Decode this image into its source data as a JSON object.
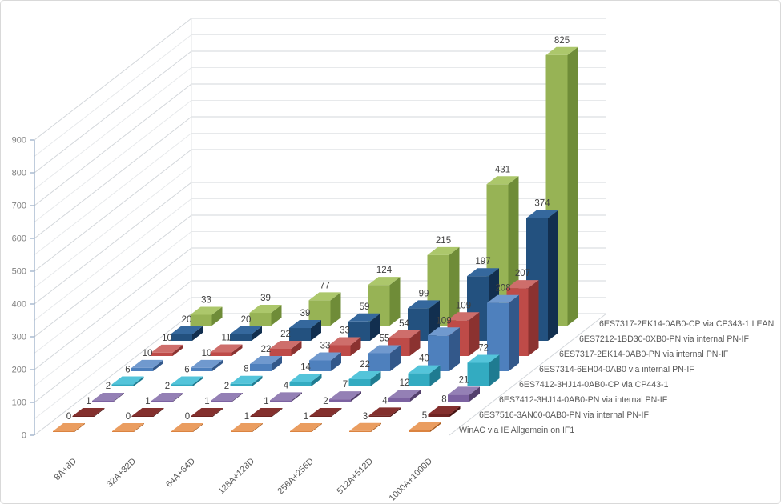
{
  "chart_data": {
    "type": "bar",
    "projection": "3d",
    "title": "",
    "categories": [
      "8A+8D",
      "32A+32D",
      "64A+64D",
      "128A+128D",
      "256A+256D",
      "512A+512D",
      "1000A+1000D"
    ],
    "series_depth_order": "first series is the back row, last series is the front row",
    "series": [
      {
        "name": "6ES7317-2EK14-0AB0-CP via CP343-1 LEAN",
        "color": "#97B355",
        "color_light": "#ACC76B",
        "color_dark": "#6F8C38",
        "values": [
          33,
          39,
          77,
          124,
          215,
          431,
          825
        ]
      },
      {
        "name": "6ES7212-1BD30-0XB0-PN via internal PN-IF",
        "color": "#23517F",
        "color_light": "#35689D",
        "color_dark": "#122F4F",
        "values": [
          20,
          20,
          39,
          59,
          99,
          197,
          374
        ]
      },
      {
        "name": "6ES7317-2EK14-0AB0-PN via internal PN-IF",
        "color": "#BE4B48",
        "color_light": "#CE6E6B",
        "color_dark": "#8B3230",
        "values": [
          10,
          11,
          22,
          33,
          54,
          109,
          207
        ]
      },
      {
        "name": "6ES7314-6EH04-0AB0 via internal PN-IF",
        "color": "#4E80BD",
        "color_light": "#7099CE",
        "color_dark": "#33588A",
        "values": [
          10,
          10,
          22,
          33,
          55,
          109,
          208
        ]
      },
      {
        "name": "6ES7412-3HJ14-0AB0-CP via CP443-1",
        "color": "#33ABC1",
        "color_light": "#54C4DA",
        "color_dark": "#1F7B91",
        "values": [
          6,
          6,
          8,
          14,
          22,
          40,
          72
        ]
      },
      {
        "name": "6ES7412-3HJ14-0AB0-PN via internal PN-IF",
        "color": "#7C62A1",
        "color_light": "#9480B5",
        "color_dark": "#54406D",
        "values": [
          2,
          2,
          2,
          4,
          7,
          12,
          21
        ]
      },
      {
        "name": "6ES7516-3AN00-0AB0-PN via internal PN-IF",
        "color": "#6E2422",
        "color_light": "#84302E",
        "color_dark": "#481311",
        "values": [
          1,
          1,
          1,
          1,
          2,
          4,
          8
        ]
      },
      {
        "name": "WinAC via IE Allgemein on IF1",
        "color": "#DB8340",
        "color_light": "#EA9D60",
        "color_dark": "#A95B1E",
        "values": [
          0,
          0,
          0,
          1,
          1,
          3,
          5
        ]
      }
    ],
    "value_axis": {
      "min": 0,
      "max": 900,
      "major": 100,
      "minor": 50,
      "tick_labels": [
        "0",
        "100",
        "200",
        "300",
        "400",
        "500",
        "600",
        "700",
        "800",
        "900"
      ]
    },
    "grid": true,
    "data_labels_shown": true,
    "legend_position": "series labels at right end of each depth row"
  },
  "frame": {
    "background": "#FFFFFF",
    "border_color": "#D9D9D9",
    "axis_line_color": "#94A9C4",
    "gridline_major_color": "#D3D7DB",
    "gridline_minor_color": "#E7E9EB"
  },
  "text_colors": {
    "value_axis": "#808080",
    "category_axis": "#595959",
    "series_axis": "#595959",
    "data_label": "#3F3F3F"
  }
}
